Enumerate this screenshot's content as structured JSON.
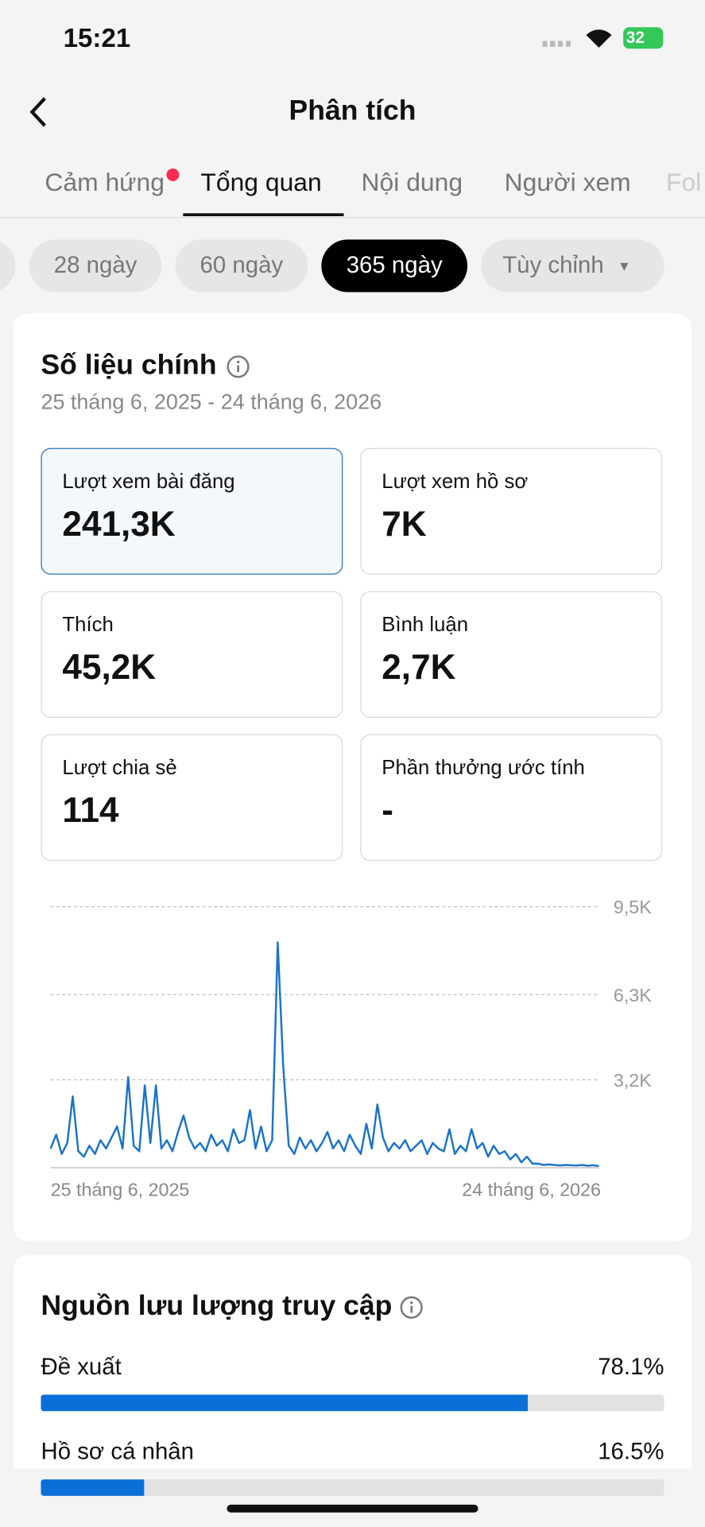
{
  "status_bar": {
    "time": "15:21",
    "battery": "32"
  },
  "header": {
    "title": "Phân tích"
  },
  "tabs": [
    "Cảm hứng",
    "Tổng quan",
    "Nội dung",
    "Người xem",
    "Fol"
  ],
  "ranges": [
    "28 ngày",
    "60 ngày",
    "365 ngày",
    "Tùy chỉnh"
  ],
  "key_metrics": {
    "title": "Số liệu chính",
    "date_range": "25 tháng 6, 2025 - 24 tháng 6, 2026",
    "cards": [
      {
        "label": "Lượt xem bài đăng",
        "value": "241,3K"
      },
      {
        "label": "Lượt xem hồ sơ",
        "value": "7K"
      },
      {
        "label": "Thích",
        "value": "45,2K"
      },
      {
        "label": "Bình luận",
        "value": "2,7K"
      },
      {
        "label": "Lượt chia sẻ",
        "value": "114"
      },
      {
        "label": "Phần thưởng ước tính",
        "value": "-"
      }
    ]
  },
  "chart_data": {
    "type": "line",
    "color": "#1a73c8",
    "x_start": "25 tháng 6, 2025",
    "x_end": "24 tháng 6, 2026",
    "ylim": [
      0,
      9500
    ],
    "yticks": [
      {
        "value": 3200,
        "label": "3,2K"
      },
      {
        "value": 6300,
        "label": "6,3K"
      },
      {
        "value": 9500,
        "label": "9,5K"
      }
    ],
    "grid": true,
    "values": [
      700,
      1200,
      500,
      900,
      2600,
      600,
      400,
      800,
      500,
      1000,
      700,
      1100,
      1500,
      700,
      3300,
      800,
      600,
      3000,
      900,
      3000,
      700,
      1000,
      600,
      1300,
      1900,
      1100,
      700,
      900,
      600,
      1200,
      800,
      1000,
      600,
      1400,
      900,
      1000,
      2100,
      700,
      1500,
      600,
      1000,
      8200,
      3700,
      800,
      500,
      1100,
      700,
      1000,
      600,
      900,
      1300,
      700,
      1000,
      600,
      1200,
      800,
      500,
      1600,
      700,
      2300,
      1100,
      600,
      900,
      700,
      1000,
      600,
      800,
      1000,
      500,
      900,
      700,
      600,
      1400,
      500,
      800,
      600,
      1400,
      700,
      900,
      400,
      800,
      500,
      600,
      300,
      500,
      200,
      400,
      150,
      150,
      100,
      120,
      100,
      80,
      100,
      90,
      80,
      100,
      70,
      90,
      60
    ]
  },
  "traffic": {
    "title": "Nguồn lưu lượng truy cập",
    "sources": [
      {
        "name": "Đề xuất",
        "value": 78.1,
        "value_label": "78.1%"
      },
      {
        "name": "Hồ sơ cá nhân",
        "value": 16.5,
        "value_label": "16.5%"
      }
    ]
  }
}
